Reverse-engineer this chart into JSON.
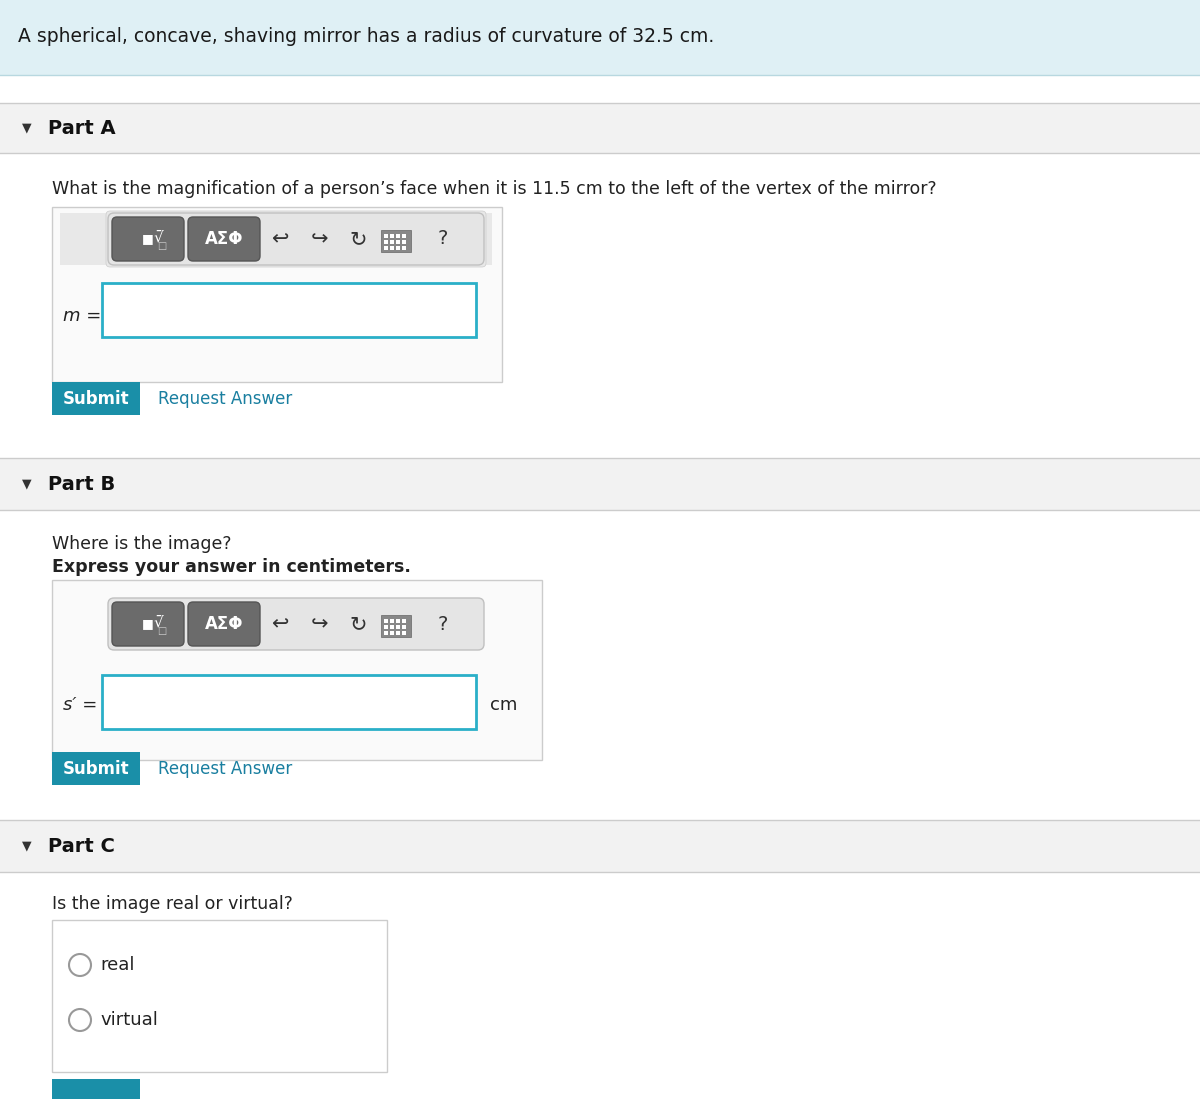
{
  "bg_color": "#ffffff",
  "header_bg": "#dff0f5",
  "section_bg": "#f2f2f2",
  "border_color": "#cccccc",
  "teal_color": "#1a7fa0",
  "submit_color": "#1a8fa8",
  "dark_text": "#222222",
  "input_border": "#2aafc8",
  "input_bg": "#ffffff",
  "toolbar_bg": "#e8e8e8",
  "btn_gray": "#757575",
  "header_text": "A spherical, concave, shaving mirror has a radius of curvature of 32.5 cm.",
  "partA_label": "Part A",
  "partA_question": "What is the magnification of a person’s face when it is 11.5 cm to the left of the vertex of the mirror?",
  "partA_var": "m =",
  "partB_label": "Part B",
  "partB_q1": "Where is the image?",
  "partB_q2": "Express your answer in centimeters.",
  "partB_unit": "cm",
  "partC_label": "Part C",
  "partC_question": "Is the image real or virtual?",
  "partC_opt1": "real",
  "partC_opt2": "virtual",
  "submit_text": "Submit",
  "request_text": "Request Answer",
  "fig_width": 12.0,
  "fig_height": 10.99
}
